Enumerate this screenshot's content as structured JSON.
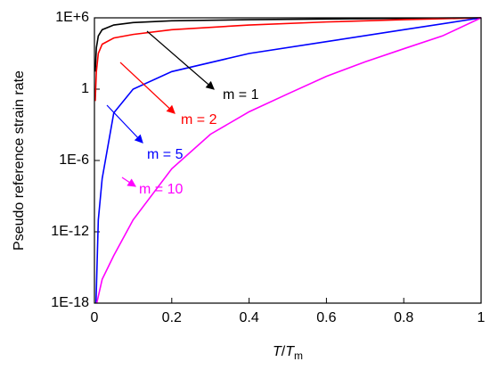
{
  "chart_data": {
    "type": "line",
    "ylabel": "Pseudo reference strain rate",
    "xlabel": [
      "T",
      "/",
      "T",
      "m"
    ],
    "xlim": [
      0,
      1
    ],
    "xticks": [
      0,
      0.2,
      0.4,
      0.6,
      0.8,
      1
    ],
    "ylim": [
      1e-18,
      1000000.0
    ],
    "yticks": [
      {
        "value": 1e-18,
        "label": "1E-18"
      },
      {
        "value": 1e-12,
        "label": "1E-12"
      },
      {
        "value": 1e-06,
        "label": "1E-6"
      },
      1,
      {
        "value": 1000000.0,
        "label": "1E+6"
      }
    ],
    "log_y": true,
    "series": [
      {
        "color": "#000000",
        "x": [
          0.002,
          0.005,
          0.01,
          0.02,
          0.05,
          0.1,
          0.2,
          0.4,
          0.6,
          0.8,
          1
        ],
        "values": [
          30,
          3000,
          30000,
          100000,
          250000,
          400000,
          560000,
          700000,
          800000,
          900000,
          1000000
        ]
      },
      {
        "color": "#ff0000",
        "x": [
          0.002,
          0.005,
          0.01,
          0.02,
          0.05,
          0.1,
          0.2,
          0.4,
          0.6,
          0.8,
          1
        ],
        "values": [
          0.1,
          30,
          1000,
          6000,
          20000,
          40000,
          100000,
          250000,
          450000,
          700000,
          1000000
        ]
      },
      {
        "color": "#0000ff",
        "x": [
          0.004,
          0.01,
          0.02,
          0.05,
          0.1,
          0.2,
          0.4,
          0.6,
          0.8,
          1
        ],
        "values": [
          1e-18,
          1e-11,
          3e-08,
          0.01,
          1,
          30,
          1000,
          10000,
          100000,
          1000000
        ]
      },
      {
        "color": "#ff00ff",
        "x": [
          0.006,
          0.02,
          0.05,
          0.1,
          0.2,
          0.3,
          0.4,
          0.5,
          0.6,
          0.7,
          0.8,
          0.9,
          1
        ],
        "values": [
          1e-18,
          1e-16,
          1e-14,
          1e-11,
          2e-07,
          0.00016,
          0.0125,
          0.4,
          12,
          200,
          2500,
          30000,
          1000000
        ]
      }
    ],
    "annotations": [
      {
        "text": "m = 1",
        "color": "#000000"
      },
      {
        "text": "m = 2",
        "color": "#ff0000"
      },
      {
        "text": "m = 5",
        "color": "#0000ff"
      },
      {
        "text": "m = 10",
        "color": "#ff00ff"
      }
    ]
  }
}
